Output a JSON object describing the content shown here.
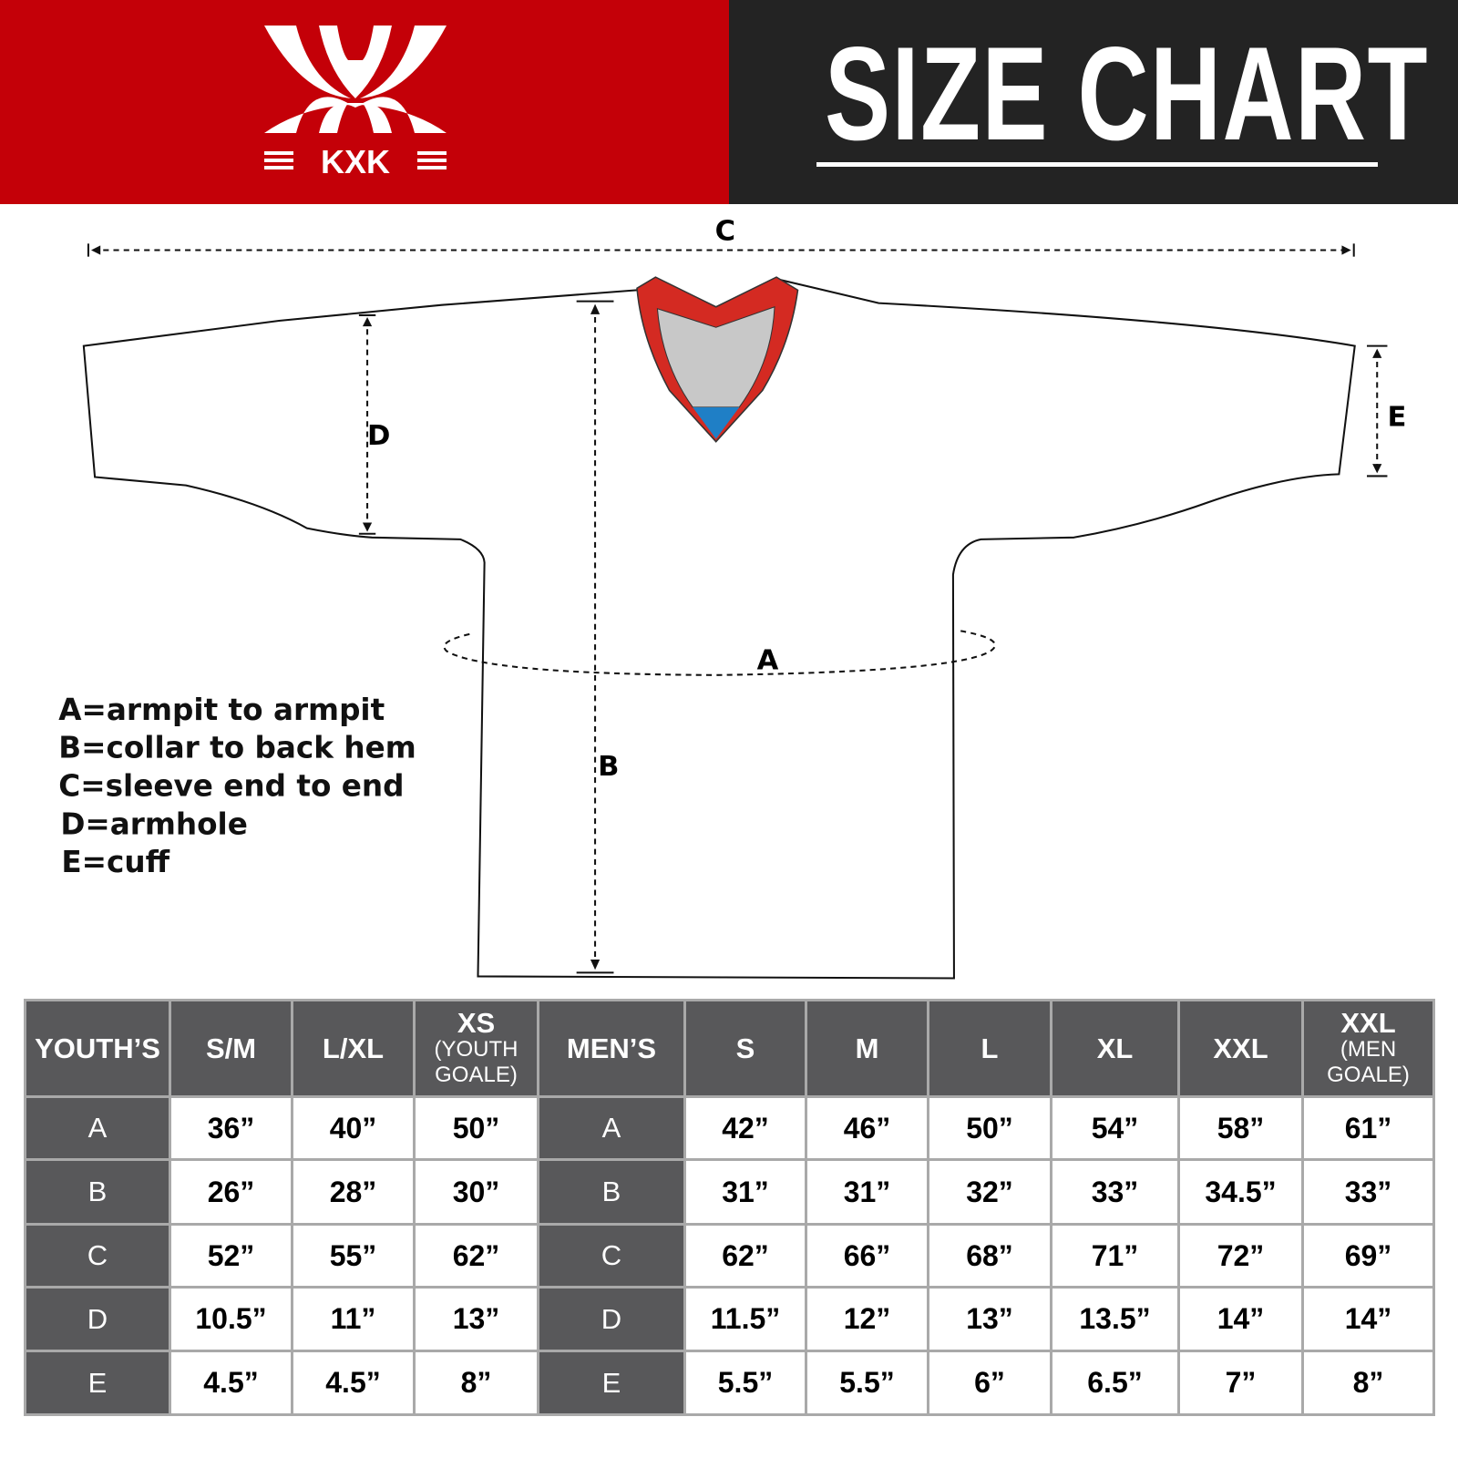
{
  "brand": {
    "logo_text": "KXK",
    "color_red": "#c40008",
    "color_dark": "#232323"
  },
  "header": {
    "title": "SIZE CHART"
  },
  "diagram": {
    "labels": {
      "A": "A",
      "B": "B",
      "C": "C",
      "D": "D",
      "E": "E"
    },
    "collar_colors": {
      "trim": "#d42a22",
      "inner": "#c8c8c8",
      "accent": "#1f7fc6"
    }
  },
  "legend": [
    "A=armpit to armpit",
    "B=collar to back hem",
    "C=sleeve end to end",
    "D=armhole",
    "E=cuff"
  ],
  "table": {
    "youth_header": "YOUTH’S",
    "youth_sizes": [
      {
        "main": "S/M",
        "sub": ""
      },
      {
        "main": "L/XL",
        "sub": ""
      },
      {
        "main": "XS",
        "sub": "(YOUTH GOALE)"
      }
    ],
    "men_header": "MEN’S",
    "men_sizes": [
      {
        "main": "S",
        "sub": ""
      },
      {
        "main": "M",
        "sub": ""
      },
      {
        "main": "L",
        "sub": ""
      },
      {
        "main": "XL",
        "sub": ""
      },
      {
        "main": "XXL",
        "sub": ""
      },
      {
        "main": "XXL",
        "sub": "(MEN GOALE)"
      }
    ],
    "rows": [
      {
        "label": "A",
        "youth": [
          "36”",
          "40”",
          "50”"
        ],
        "men": [
          "42”",
          "46”",
          "50”",
          "54”",
          "58”",
          "61”"
        ]
      },
      {
        "label": "B",
        "youth": [
          "26”",
          "28”",
          "30”"
        ],
        "men": [
          "31”",
          "31”",
          "32”",
          "33”",
          "34.5”",
          "33”"
        ]
      },
      {
        "label": "C",
        "youth": [
          "52”",
          "55”",
          "62”"
        ],
        "men": [
          "62”",
          "66”",
          "68”",
          "71”",
          "72”",
          "69”"
        ]
      },
      {
        "label": "D",
        "youth": [
          "10.5”",
          "11”",
          "13”"
        ],
        "men": [
          "11.5”",
          "12”",
          "13”",
          "13.5”",
          "14”",
          "14”"
        ]
      },
      {
        "label": "E",
        "youth": [
          "4.5”",
          "4.5”",
          "8”"
        ],
        "men": [
          "5.5”",
          "5.5”",
          "6”",
          "6.5”",
          "7”",
          "8”"
        ]
      }
    ]
  }
}
